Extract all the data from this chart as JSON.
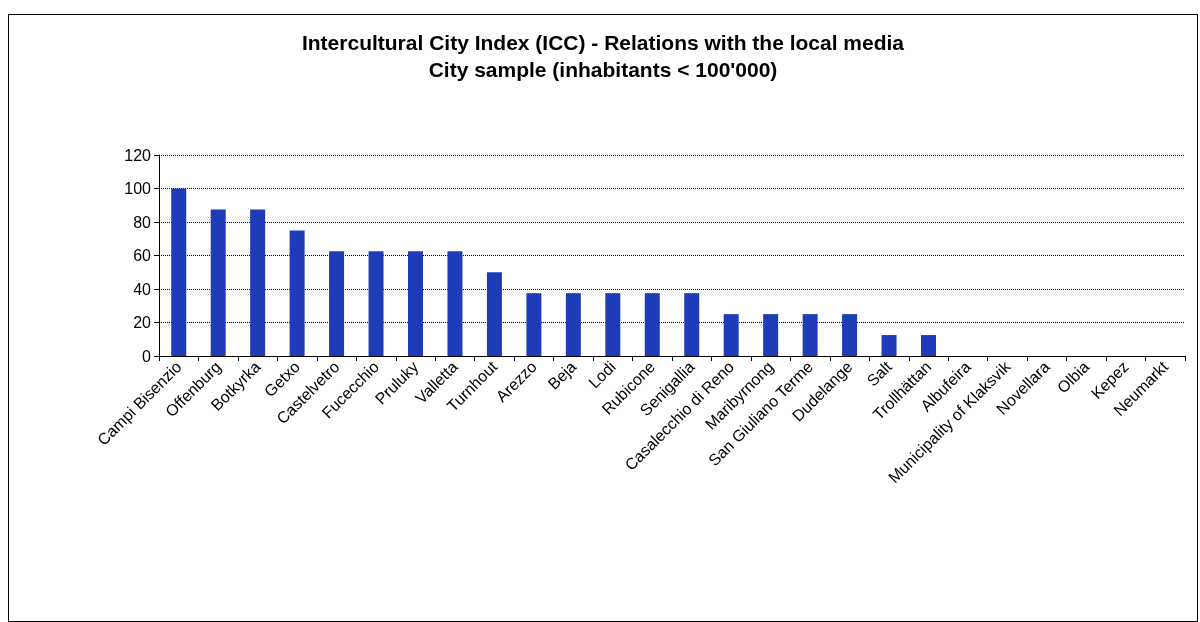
{
  "chart_data": {
    "type": "bar",
    "title": "Intercultural City Index (ICC) - Relations with the local media",
    "subtitle": "City sample (inhabitants < 100'000)",
    "categories": [
      "Campi Bisenzio",
      "Offenburg",
      "Botkyrka",
      "Getxo",
      "Castelvetro",
      "Fucecchio",
      "Pruluky",
      "Valletta",
      "Turnhout",
      "Arezzo",
      "Beja",
      "Lodi",
      "Rubicone",
      "Senigallia",
      "Casalecchio di Reno",
      "Maribyrnong",
      "San Giuliano Terme",
      "Dudelange",
      "Salt",
      "Trollhättan",
      "Albufeira",
      "Municipality of Klaksvik",
      "Novellara",
      "Olbia",
      "Kepez",
      "Neumarkt"
    ],
    "values": [
      100,
      87.5,
      87.5,
      75,
      62.5,
      62.5,
      62.5,
      62.5,
      50,
      37.5,
      37.5,
      37.5,
      37.5,
      37.5,
      25,
      25,
      25,
      25,
      12.5,
      12.5,
      0,
      0,
      0,
      0,
      0,
      0
    ],
    "color": "#1f3cb8",
    "ylim": [
      0,
      120
    ],
    "yticks": [
      0,
      20,
      40,
      60,
      80,
      100,
      120
    ],
    "grid": "y"
  }
}
